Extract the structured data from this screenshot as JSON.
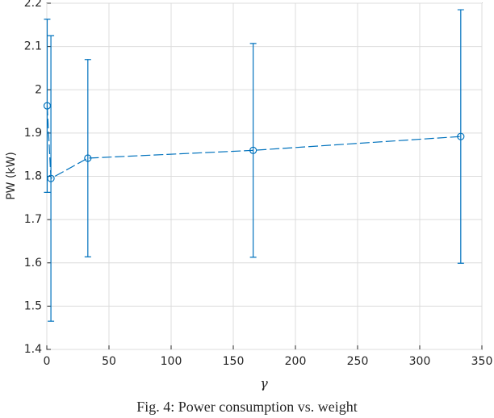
{
  "chart_data": {
    "type": "errorbar",
    "x_label": "γ",
    "y_label": "PW (kW)",
    "caption": "Fig. 4: Power consumption vs. weight",
    "x": [
      0.3,
      3.3,
      33,
      166,
      333
    ],
    "series": [
      {
        "color": "#0072bd",
        "values": [
          1.963,
          1.795,
          1.842,
          1.86,
          1.892
        ],
        "errors": [
          0.2,
          0.33,
          0.228,
          0.247,
          0.293
        ]
      }
    ],
    "xlim": [
      0,
      350
    ],
    "xticks": [
      0,
      50,
      100,
      150,
      200,
      250,
      300,
      350
    ],
    "ylim": [
      1.4,
      2.2
    ],
    "yticks": [
      1.4,
      1.5,
      1.6,
      1.7,
      1.8,
      1.9,
      2,
      2.1,
      2.2
    ],
    "grid": true
  }
}
